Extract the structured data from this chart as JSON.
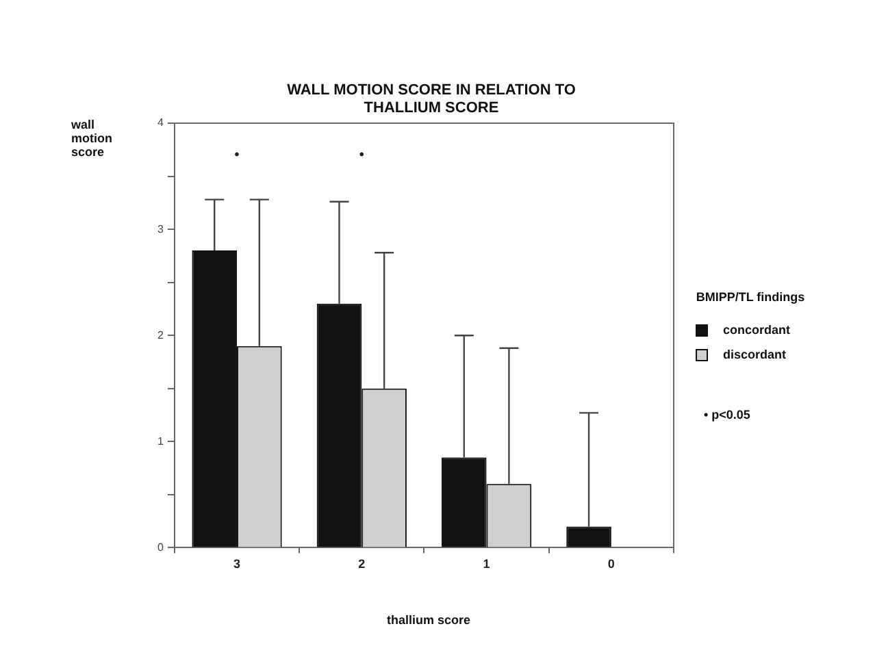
{
  "chart_data": {
    "type": "bar",
    "title": "WALL MOTION SCORE IN RELATION TO THALLIUM SCORE",
    "xlabel": "thallium score",
    "ylabel": "wall motion score",
    "legend_title": "BMIPP/TL findings",
    "categories": [
      "3",
      "2",
      "1",
      "0"
    ],
    "series": [
      {
        "name": "concordant",
        "color": "#111111",
        "values": [
          2.8,
          2.3,
          0.85,
          0.2
        ],
        "errors": [
          [
            2.8,
            3.28
          ],
          [
            2.3,
            3.26
          ],
          [
            0.85,
            2.0
          ],
          [
            0.2,
            1.27
          ]
        ]
      },
      {
        "name": "discordant",
        "color": "#cfcfcf",
        "values": [
          1.9,
          1.5,
          0.6,
          null
        ],
        "errors": [
          [
            1.9,
            3.28
          ],
          [
            1.5,
            2.78
          ],
          [
            0.6,
            1.88
          ],
          null
        ]
      }
    ],
    "ylim": [
      0,
      4
    ],
    "yticks": [
      0,
      {
        "value": 0.5,
        "label": null
      },
      1,
      {
        "value": 1.5,
        "label": null
      },
      2,
      {
        "value": 2.5,
        "label": null
      },
      3,
      {
        "value": 3.5,
        "label": null
      },
      4
    ],
    "annotations": [
      "•",
      "•",
      "• p<0.05"
    ],
    "grid": false,
    "legend": "right"
  }
}
